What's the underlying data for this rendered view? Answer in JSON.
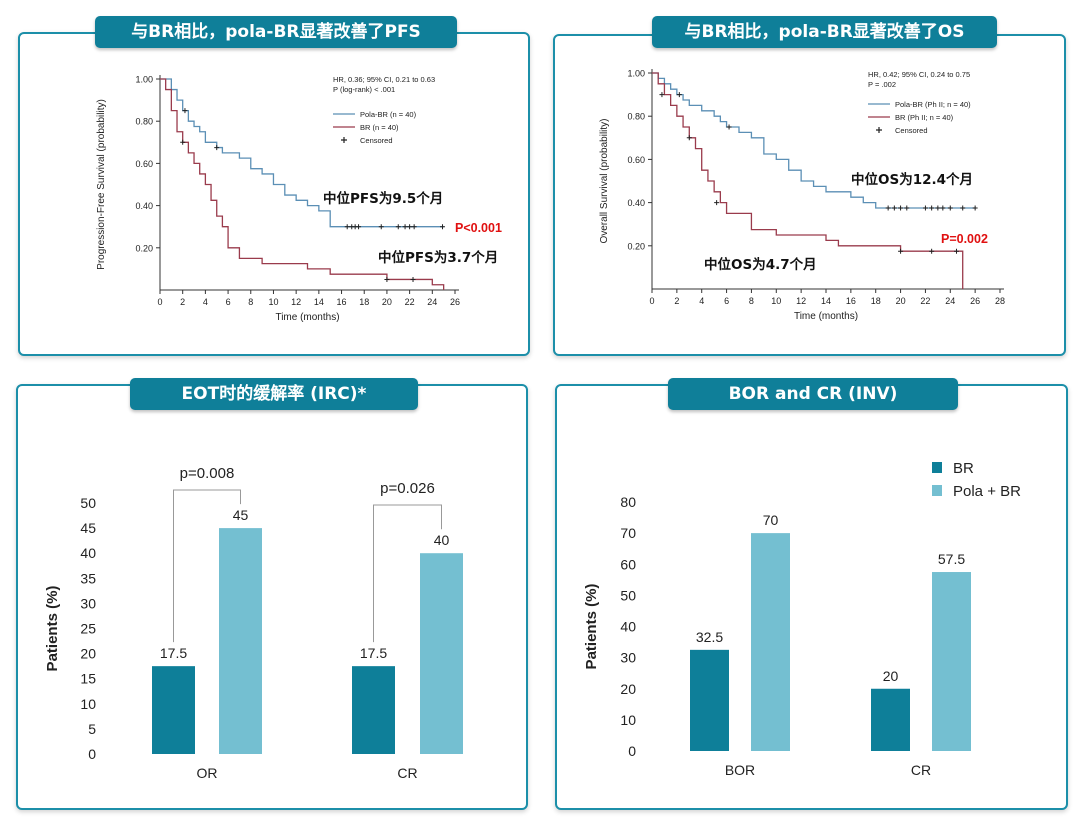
{
  "colors": {
    "pola_br_line": "#5b8fb5",
    "br_line": "#9a3b4c",
    "br_bar": "#0e7f99",
    "pola_bar": "#74bfd1",
    "red_text": "#e01010",
    "tab_bg": "#0f7f99"
  },
  "panels": {
    "pfs": {
      "title": "与BR相比，pola-BR显著改善了PFS"
    },
    "os": {
      "title": "与BR相比，pola-BR显著改善了OS"
    },
    "eot": {
      "title": "EOT时的缓解率 (IRC)*"
    },
    "bor": {
      "title": "BOR and CR (INV)"
    }
  },
  "chart_data": [
    {
      "id": "pfs",
      "type": "line",
      "ylabel": "Progression-Free Survival (probability)",
      "xlabel": "Time (months)",
      "xlim": [
        0,
        26
      ],
      "ylim": [
        0,
        1
      ],
      "xticks": [
        "0",
        "2",
        "4",
        "6",
        "8",
        "10",
        "12",
        "14",
        "16",
        "18",
        "20",
        "22",
        "24",
        "26"
      ],
      "yticks": [
        "1.00",
        "0.80",
        "0.60",
        "0.40",
        "0.20"
      ],
      "stats": [
        "HR, 0.36; 95% CI, 0.21 to 0.63",
        "P (log-rank) < .001"
      ],
      "legend": [
        "Pola-BR (n = 40)",
        "BR (n = 40)",
        "Censored"
      ],
      "series": [
        {
          "name": "Pola-BR",
          "x": [
            0,
            1,
            1.5,
            2,
            2.5,
            3,
            3.5,
            4,
            5,
            5.5,
            6,
            7,
            8,
            9,
            10,
            11,
            12,
            13,
            14,
            15,
            25
          ],
          "y": [
            1.0,
            0.95,
            0.9,
            0.85,
            0.8,
            0.775,
            0.75,
            0.7,
            0.675,
            0.65,
            0.65,
            0.625,
            0.575,
            0.55,
            0.5,
            0.45,
            0.425,
            0.4,
            0.375,
            0.3,
            0.3
          ],
          "censored": [
            [
              2.2,
              0.85
            ],
            [
              5,
              0.675
            ],
            [
              16.5,
              0.3
            ],
            [
              16.9,
              0.3
            ],
            [
              17.2,
              0.3
            ],
            [
              17.5,
              0.3
            ],
            [
              19.5,
              0.3
            ],
            [
              21,
              0.3
            ],
            [
              21.6,
              0.3
            ],
            [
              22,
              0.3
            ],
            [
              22.4,
              0.3
            ],
            [
              24.9,
              0.3
            ]
          ]
        },
        {
          "name": "BR",
          "x": [
            0,
            0.5,
            1,
            1.5,
            2,
            2.5,
            3,
            3.5,
            4,
            4.5,
            5,
            5.5,
            6,
            7,
            8,
            9,
            10,
            11,
            12,
            13,
            14,
            15,
            16,
            17,
            18,
            20,
            21,
            22,
            23,
            24,
            25
          ],
          "y": [
            1.0,
            0.95,
            0.85,
            0.75,
            0.7,
            0.65,
            0.6,
            0.55,
            0.5,
            0.425,
            0.35,
            0.3,
            0.2,
            0.15,
            0.15,
            0.125,
            0.125,
            0.125,
            0.125,
            0.1,
            0.1,
            0.075,
            0.075,
            0.075,
            0.075,
            0.05,
            0.05,
            0.05,
            0.05,
            0.025,
            0.0
          ],
          "censored": [
            [
              2,
              0.7
            ],
            [
              20,
              0.05
            ],
            [
              22.3,
              0.05
            ]
          ]
        }
      ],
      "annotations": {
        "pola_median": "中位PFS为9.5个月",
        "br_median": "中位PFS为3.7个月",
        "p": "P<0.001"
      }
    },
    {
      "id": "os",
      "type": "line",
      "ylabel": "Overall Survival (probability)",
      "xlabel": "Time (months)",
      "xlim": [
        0,
        28
      ],
      "ylim": [
        0,
        1
      ],
      "xticks": [
        "0",
        "2",
        "4",
        "6",
        "8",
        "10",
        "12",
        "14",
        "16",
        "18",
        "20",
        "22",
        "24",
        "26",
        "28"
      ],
      "yticks": [
        "1.00",
        "0.80",
        "0.60",
        "0.40",
        "0.20"
      ],
      "stats": [
        "HR, 0.42; 95% CI, 0.24 to 0.75",
        "P = .002"
      ],
      "legend": [
        "Pola-BR  (Ph II; n = 40)",
        "BR (Ph II; n = 40)",
        "Censored"
      ],
      "series": [
        {
          "name": "Pola-BR",
          "x": [
            0,
            0.5,
            1,
            1.5,
            2,
            2.5,
            3,
            4,
            5,
            5.5,
            6,
            7,
            8,
            9,
            10,
            11,
            12,
            13,
            14,
            16,
            17,
            18,
            26
          ],
          "y": [
            1.0,
            0.975,
            0.95,
            0.925,
            0.9,
            0.875,
            0.85,
            0.825,
            0.8,
            0.775,
            0.75,
            0.725,
            0.7,
            0.625,
            0.6,
            0.55,
            0.5,
            0.475,
            0.45,
            0.425,
            0.4,
            0.375,
            0.375
          ],
          "censored": [
            [
              2.2,
              0.9
            ],
            [
              6.2,
              0.75
            ],
            [
              19,
              0.375
            ],
            [
              19.5,
              0.375
            ],
            [
              20,
              0.375
            ],
            [
              20.5,
              0.375
            ],
            [
              22,
              0.375
            ],
            [
              22.5,
              0.375
            ],
            [
              23,
              0.375
            ],
            [
              23.4,
              0.375
            ],
            [
              24,
              0.375
            ],
            [
              25,
              0.375
            ],
            [
              26,
              0.375
            ]
          ]
        },
        {
          "name": "BR",
          "x": [
            0,
            0.5,
            1,
            1.5,
            2,
            2.5,
            3,
            3.5,
            4,
            4.5,
            5,
            5.5,
            6,
            7,
            8,
            10,
            12,
            14,
            15,
            18,
            20,
            22,
            24,
            25,
            25
          ],
          "y": [
            1.0,
            0.95,
            0.9,
            0.85,
            0.8,
            0.75,
            0.7,
            0.65,
            0.55,
            0.5,
            0.45,
            0.4,
            0.35,
            0.35,
            0.275,
            0.25,
            0.25,
            0.225,
            0.2,
            0.2,
            0.175,
            0.175,
            0.175,
            0.175,
            0.0
          ],
          "censored": [
            [
              0.8,
              0.9
            ],
            [
              3,
              0.7
            ],
            [
              5.2,
              0.4
            ],
            [
              20,
              0.175
            ],
            [
              22.5,
              0.175
            ],
            [
              24.5,
              0.175
            ]
          ]
        }
      ],
      "annotations": {
        "pola_median": "中位OS为12.4个月",
        "br_median": "中位OS为4.7个月",
        "p": "P=0.002"
      }
    },
    {
      "id": "eot",
      "type": "bar",
      "ylabel": "Patients (%)",
      "ylim": [
        0,
        50
      ],
      "yticks": [
        "0",
        "5",
        "10",
        "15",
        "20",
        "25",
        "30",
        "35",
        "40",
        "45",
        "50"
      ],
      "categories": [
        "OR",
        "CR"
      ],
      "series": [
        {
          "name": "BR",
          "values": [
            17.5,
            17.5
          ],
          "labels": [
            "17.5",
            "17.5"
          ]
        },
        {
          "name": "Pola + BR",
          "values": [
            45,
            40
          ],
          "labels": [
            "45",
            "40"
          ]
        }
      ],
      "pvalues": [
        "p=0.008",
        "p=0.026"
      ]
    },
    {
      "id": "bor",
      "type": "bar",
      "ylabel": "Patients (%)",
      "ylim": [
        0,
        80
      ],
      "yticks": [
        "0",
        "10",
        "20",
        "30",
        "40",
        "50",
        "60",
        "70",
        "80"
      ],
      "categories": [
        "BOR",
        "CR"
      ],
      "series": [
        {
          "name": "BR",
          "values": [
            32.5,
            20
          ],
          "labels": [
            "32.5",
            "20"
          ]
        },
        {
          "name": "Pola + BR",
          "values": [
            70,
            57.5
          ],
          "labels": [
            "70",
            "57.5"
          ]
        }
      ],
      "legend": [
        "BR",
        "Pola + BR"
      ]
    }
  ]
}
